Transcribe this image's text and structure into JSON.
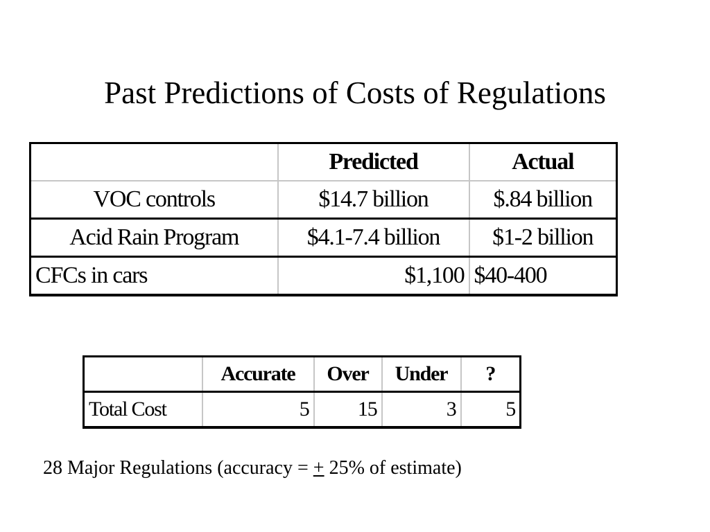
{
  "slide": {
    "title": "Past Predictions of Costs of Regulations"
  },
  "cost_table": {
    "headers": [
      "",
      "Predicted",
      "Actual"
    ],
    "rows": [
      {
        "label": "VOC controls",
        "predicted": "$14.7 billion",
        "actual": "$.84 billion"
      },
      {
        "label": "Acid Rain Program",
        "predicted": "$4.1-7.4 billion",
        "actual": "$1-2 billion"
      },
      {
        "label": "CFCs in cars",
        "predicted": "$1,100",
        "actual": "$40-400"
      }
    ]
  },
  "accuracy_table": {
    "headers": [
      "",
      "Accurate",
      "Over",
      "Under",
      "?"
    ],
    "rows": [
      {
        "label": "Total Cost",
        "accurate": "5",
        "over": "15",
        "under": "3",
        "unknown": "5"
      }
    ]
  },
  "footnote": {
    "before": "28 Major Regulations (accuracy = ",
    "plus_minus": "+",
    "after": " 25% of estimate)"
  }
}
